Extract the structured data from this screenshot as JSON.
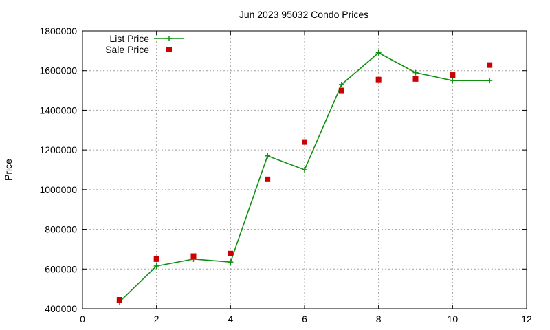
{
  "chart_data": {
    "type": "line",
    "title": "Jun 2023 95032 Condo Prices",
    "xlabel": "",
    "ylabel": "Price",
    "xlim": [
      0,
      12
    ],
    "ylim": [
      400000,
      1800000
    ],
    "xticks": [
      0,
      2,
      4,
      6,
      8,
      10,
      12
    ],
    "yticks": [
      400000,
      600000,
      800000,
      1000000,
      1200000,
      1400000,
      1600000,
      1800000
    ],
    "grid": true,
    "legend_position": "top-left",
    "series": [
      {
        "name": "List Price",
        "style": "line-with-plus-markers",
        "color": "#109010",
        "x": [
          1,
          2,
          3,
          4,
          5,
          6,
          7,
          8,
          9,
          10,
          11
        ],
        "y": [
          435000,
          615000,
          650000,
          635000,
          1170000,
          1100000,
          1530000,
          1690000,
          1590000,
          1550000,
          1550000
        ]
      },
      {
        "name": "Sale Price",
        "style": "square-markers",
        "color": "#cc0000",
        "x": [
          1,
          2,
          3,
          4,
          5,
          6,
          7,
          8,
          9,
          10,
          11
        ],
        "y": [
          445000,
          650000,
          665000,
          678000,
          1052000,
          1240000,
          1500000,
          1555000,
          1558000,
          1578000,
          1628000
        ]
      }
    ]
  }
}
